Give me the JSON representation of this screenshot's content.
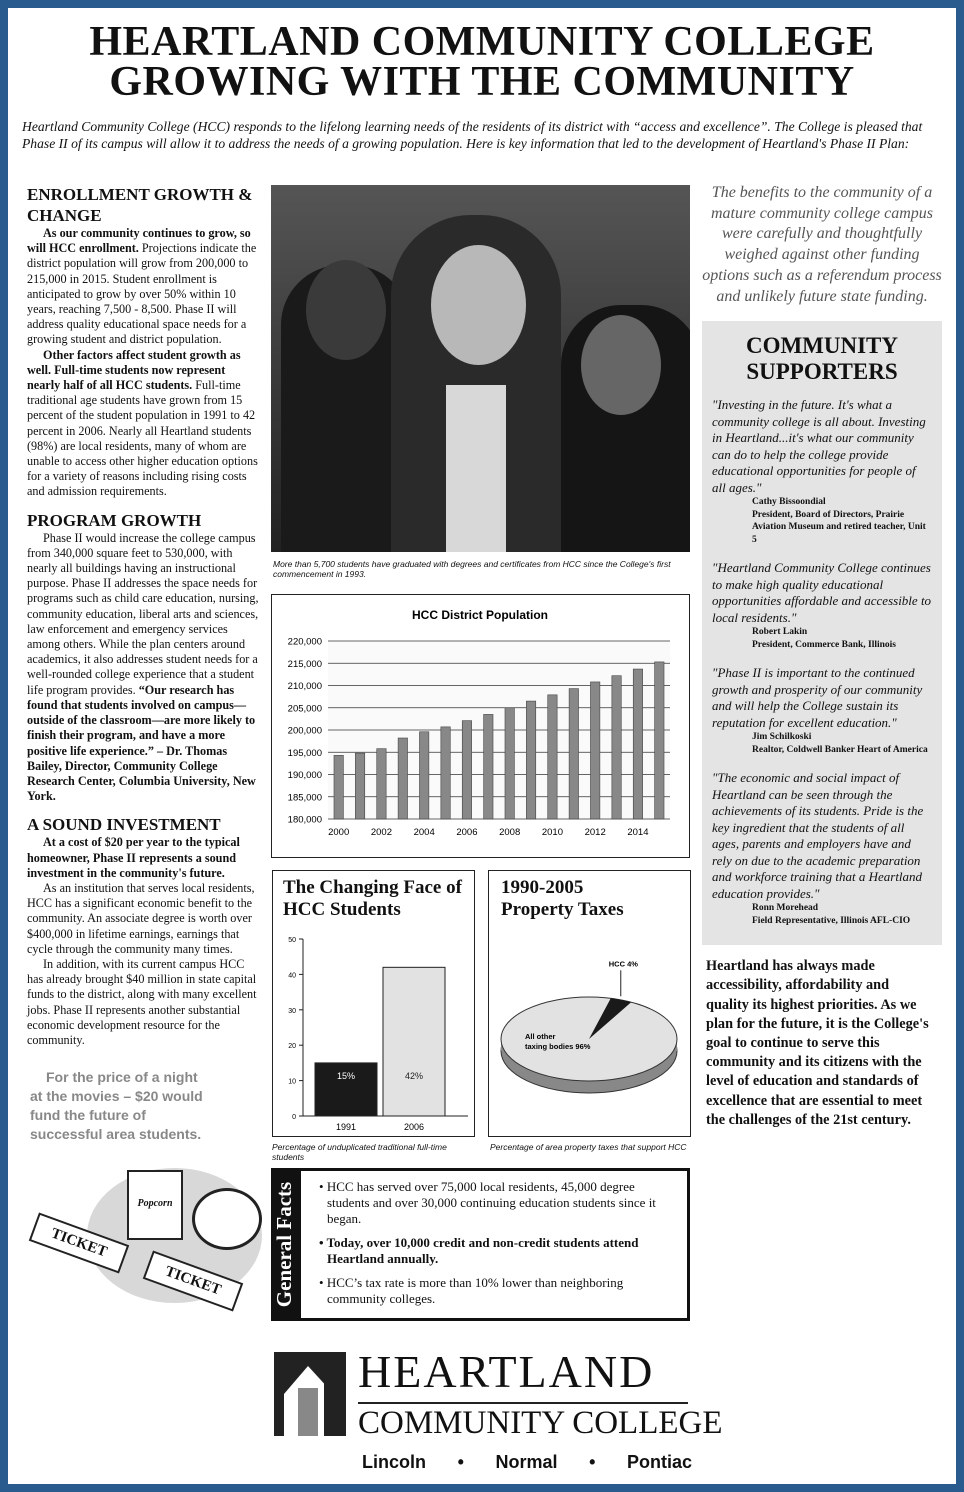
{
  "title": {
    "line1": "HEARTLAND COMMUNITY COLLEGE",
    "line2": "GROWING WITH THE COMMUNITY"
  },
  "intro": "Heartland Community College (HCC) responds to the lifelong learning needs of the residents of its district with “access and excellence”. The College is pleased that Phase II of its campus will allow it to address the needs of a growing population. Here is key information that led to the development of Heartland's Phase II Plan:",
  "enrollment": {
    "heading": "ENROLLMENT GROWTH & CHANGE",
    "p1_bold": "As our community continues to grow, so will HCC enrollment.",
    "p1": " Projections indicate the district population will grow from 200,000 to 215,000 in 2015. Student enrollment is anticipated to grow by over 50% within 10 years, reaching 7,500 - 8,500. Phase II will address quality educational space needs for a growing student and district population.",
    "p2_bold": "Other factors affect student growth as well. Full-time students now represent nearly half of all HCC students.",
    "p2": " Full-time traditional age students have grown from 15 percent of the student population in 1991 to 42 percent in 2006. Nearly all Heartland students (98%) are local residents, many of whom are unable to access other higher education options for a variety of reasons including rising costs and admission requirements."
  },
  "program": {
    "heading": "PROGRAM GROWTH",
    "p1": "Phase II would increase the college campus from 340,000 square feet to 530,000, with nearly all buildings having an instructional purpose. Phase II addresses the space needs for programs such as child care education, nursing, community education, liberal arts and sciences, law enforcement and emergency services among others. While the plan centers around academics, it also addresses student needs for a well-rounded college experience that a student life program provides. ",
    "p1_bold": "“Our research has found that students involved on campus—outside of the classroom—are more likely to finish their program, and have a more positive life experience.” – Dr. Thomas Bailey, Director, Community College Research Center, Columbia University, New York."
  },
  "investment": {
    "heading": "A SOUND INVESTMENT",
    "p1_bold": "At a cost of $20 per year to the typical homeowner, Phase II represents a sound investment in the community's future.",
    "p2": "As an institution that serves local residents, HCC has a significant economic benefit to the community. An associate degree is worth over $400,000 in lifetime earnings, earnings that cycle through the community many times.",
    "p3": "In addition, with its current campus HCC has already brought $40 million in state capital funds to the district, along with many excellent jobs. Phase II represents another substantial economic development resource for the community."
  },
  "movies": {
    "text": "For the price of a night at the movies – $20 would fund the future of successful area students.",
    "popcorn": "Popcorn",
    "ticket": "TICKET"
  },
  "photo_caption": "More than 5,700 students have graduated with degrees and certificates from HCC since the College's first commencement in 1993.",
  "chart_data": [
    {
      "type": "bar",
      "title": "HCC District Population",
      "x": [
        2000,
        2001,
        2002,
        2003,
        2004,
        2005,
        2006,
        2007,
        2008,
        2009,
        2010,
        2011,
        2012,
        2013,
        2014,
        2015
      ],
      "values": [
        194300,
        194800,
        195800,
        198200,
        199600,
        200700,
        202100,
        203500,
        205000,
        206500,
        207900,
        209300,
        210800,
        212200,
        213700,
        215300
      ],
      "xticks": [
        "2000",
        "2002",
        "2004",
        "2006",
        "2008",
        "2010",
        "2012",
        "2014"
      ],
      "yticks": [
        "180,000",
        "185,000",
        "190,000",
        "195,000",
        "200,000",
        "205,000",
        "210,000",
        "215,000",
        "220,000"
      ],
      "ylim": [
        180000,
        220000
      ],
      "grid": true,
      "color": "#888888"
    },
    {
      "type": "bar",
      "title": "The Changing Face of HCC Students",
      "categories": [
        "1991",
        "2006"
      ],
      "values": [
        15,
        42
      ],
      "labels": [
        "15%",
        "42%"
      ],
      "colors": [
        "#1a1a1a",
        "#e2e2e2"
      ],
      "yticks": [
        "0",
        "10",
        "20",
        "30",
        "40",
        "50"
      ],
      "ylim": [
        0,
        50
      ],
      "caption": "Percentage of unduplicated traditional full-time students"
    },
    {
      "type": "pie",
      "title": "1990-2005 Property Taxes",
      "slices": [
        {
          "label": "HCC 4%",
          "value": 4,
          "color": "#1a1a1a"
        },
        {
          "label": "All other taxing bodies 96%",
          "value": 96,
          "color": "#e2e2e2"
        }
      ],
      "caption": "Percentage of area property taxes that support HCC"
    }
  ],
  "facts": {
    "label": "General Facts",
    "items": [
      "HCC has served over 75,000 local residents, 45,000 degree students and over 30,000 continuing education students since it began.",
      "Today, over 10,000 credit and non-credit students attend Heartland annually.",
      "HCC’s tax rate is more than 10% lower than neighboring community colleges."
    ]
  },
  "logo": {
    "name": "HEARTLAND",
    "sub": "COMMUNITY COLLEGE",
    "campuses": [
      "Lincoln",
      "Normal",
      "Pontiac"
    ]
  },
  "benefits": "The benefits to the community of a mature community college campus were carefully and thoughtfully weighed against other funding options such as a referendum process and unlikely future state funding.",
  "supporters": {
    "heading": "COMMUNITY SUPPORTERS",
    "quotes": [
      {
        "text": "\"Investing in the future. It's what a community college is all about. Investing in Heartland...it's what our community can do to help the college provide educational opportunities for people of all ages.\"",
        "name": "Cathy Bissoondial",
        "role": "President, Board of Directors, Prairie Aviation Museum and retired teacher, Unit 5"
      },
      {
        "text": "\"Heartland Community College continues to make high quality educational opportunities affordable and accessible to local residents.\"",
        "name": "Robert Lakin",
        "role": "President, Commerce Bank, Illinois"
      },
      {
        "text": "\"Phase II is important to the continued growth and prosperity of our community and will help the College sustain its reputation for excellent education.\"",
        "name": "Jim Schilkoski",
        "role": "Realtor, Coldwell Banker Heart of America"
      },
      {
        "text": "\"The economic and social impact of Heartland can be seen through the achievements of its students. Pride is the key ingredient that the students of all ages, parents and employers have and rely on due to the academic preparation and workforce training that a Heartland education provides.\"",
        "name": "Ronn Morehead",
        "role": "Field Representative, Illinois AFL-CIO"
      }
    ]
  },
  "closing": "Heartland has always made accessibility, affordability and quality its highest priorities. As we plan for the future, it is the College's goal to continue to serve this community and its citizens with the level of education and standards of excellence that are essential to meet the challenges of the 21st century."
}
